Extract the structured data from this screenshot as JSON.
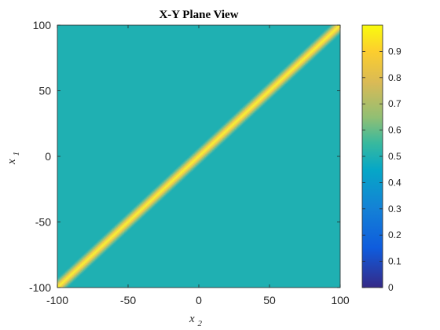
{
  "chart_data": {
    "type": "heatmap",
    "title": "X-Y Plane View",
    "xlabel": {
      "base": "x",
      "sub": "2"
    },
    "ylabel": {
      "base": "x",
      "sub": "1"
    },
    "xlim": [
      -100,
      100
    ],
    "ylim": [
      -100,
      100
    ],
    "x_ticks": [
      -100,
      -50,
      0,
      50,
      100
    ],
    "y_ticks": [
      -100,
      -50,
      0,
      50,
      100
    ],
    "x_tick_labels": [
      "-100",
      "-50",
      "0",
      "50",
      "100"
    ],
    "y_tick_labels": [
      "-100",
      "-50",
      "0",
      "50",
      "100"
    ],
    "background_value": 0.5,
    "ridge": {
      "line": "x1 = x2",
      "peak_value": 1.0
    },
    "colorbar": {
      "min": 0,
      "max": 1,
      "ticks": [
        0,
        0.1,
        0.2,
        0.3,
        0.4,
        0.5,
        0.6,
        0.7,
        0.8,
        0.9
      ],
      "tick_labels": [
        "0",
        "0.1",
        "0.2",
        "0.3",
        "0.4",
        "0.5",
        "0.6",
        "0.7",
        "0.8",
        "0.9"
      ],
      "colormap": "parula",
      "stops": [
        [
          0.0,
          "#352A87"
        ],
        [
          0.15,
          "#0F5CDD"
        ],
        [
          0.3,
          "#1481D6"
        ],
        [
          0.45,
          "#06A7C6"
        ],
        [
          0.55,
          "#38B99E"
        ],
        [
          0.65,
          "#92BF73"
        ],
        [
          0.78,
          "#D9BA56"
        ],
        [
          0.9,
          "#FCCE2E"
        ],
        [
          1.0,
          "#F9FB0E"
        ]
      ]
    },
    "grid": false
  }
}
